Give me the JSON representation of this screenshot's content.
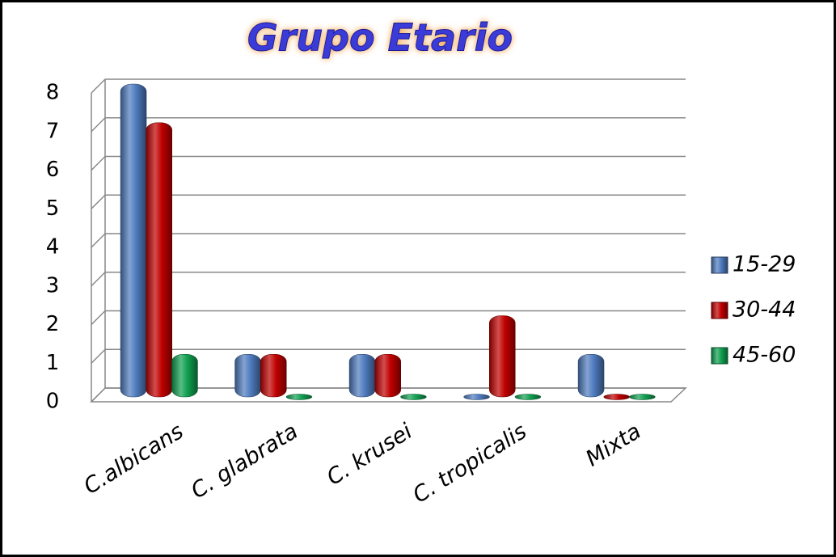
{
  "chart_data": {
    "type": "bar",
    "title": "Grupo Etario",
    "categories": [
      "C.albicans",
      "C. glabrata",
      "C. krusei",
      "C. tropicalis",
      "Mixta"
    ],
    "series": [
      {
        "name": "15-29",
        "color": "#4f7bbf",
        "values": [
          8,
          1,
          1,
          0,
          1
        ]
      },
      {
        "name": "30-44",
        "color": "#c00000",
        "values": [
          7,
          1,
          1,
          2,
          0
        ]
      },
      {
        "name": "45-60",
        "color": "#10a050",
        "values": [
          1,
          0,
          0,
          0,
          0
        ]
      }
    ],
    "ylim": [
      0,
      8
    ],
    "yticks": [
      0,
      1,
      2,
      3,
      4,
      5,
      6,
      7,
      8
    ],
    "grid": true,
    "legend": "right"
  }
}
